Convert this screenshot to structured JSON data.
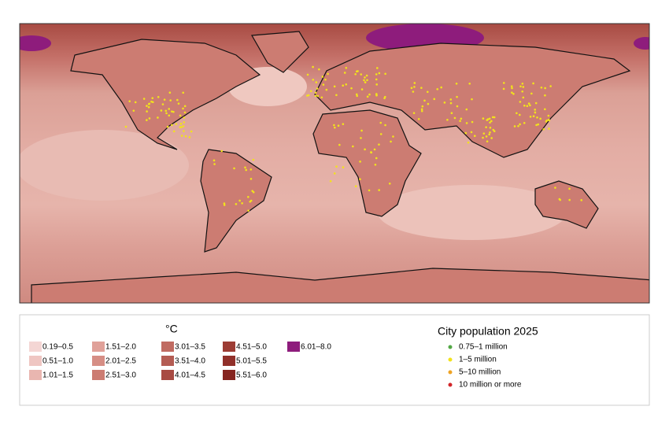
{
  "legend": {
    "temperature_title": "°C",
    "temperature_classes": [
      {
        "label": "0.19–0.5",
        "color": "#f4d6d4"
      },
      {
        "label": "0.51–1.0",
        "color": "#efc6c2"
      },
      {
        "label": "1.01–1.5",
        "color": "#e9b6b0"
      },
      {
        "label": "1.51–2.0",
        "color": "#e0a199"
      },
      {
        "label": "2.01–2.5",
        "color": "#d68e85"
      },
      {
        "label": "2.51–3.0",
        "color": "#cc7c72"
      },
      {
        "label": "3.01–3.5",
        "color": "#c06b61"
      },
      {
        "label": "3.51–4.0",
        "color": "#b45c53"
      },
      {
        "label": "4.01–4.5",
        "color": "#a84b43"
      },
      {
        "label": "4.51–5.0",
        "color": "#9c3c34"
      },
      {
        "label": "5.01–5.5",
        "color": "#91302a"
      },
      {
        "label": "5.51–6.0",
        "color": "#862520"
      },
      {
        "label": "6.01–8.0",
        "color": "#8e1c7c"
      }
    ],
    "population_title": "City population 2025",
    "population_classes": [
      {
        "label": "0.75–1 million",
        "color": "#52a845"
      },
      {
        "label": "1–5 million",
        "color": "#f2e21c"
      },
      {
        "label": "5–10 million",
        "color": "#eea324"
      },
      {
        "label": "10 million or more",
        "color": "#d2262a"
      }
    ]
  }
}
